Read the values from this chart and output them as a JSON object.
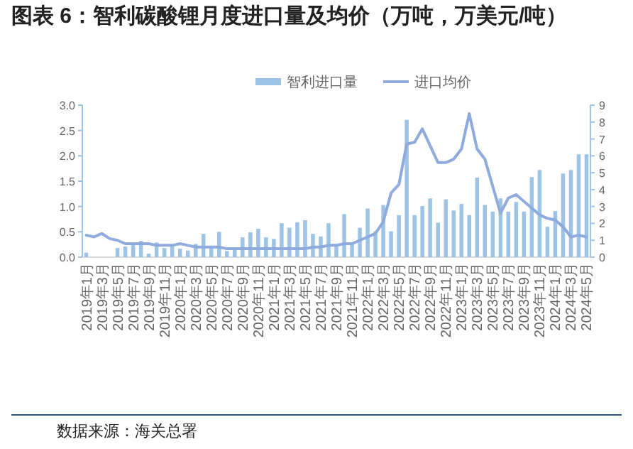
{
  "chart_data": {
    "type": "bar",
    "title": "图表 6：智利碳酸锂月度进口量及均价（万吨，万美元/吨）",
    "categories": [
      "2019年1月",
      null,
      "2019年3月",
      null,
      "2019年5月",
      null,
      "2019年7月",
      null,
      "2019年9月",
      null,
      "2019年11月",
      null,
      "2020年1月",
      null,
      "2020年3月",
      null,
      "2020年5月",
      null,
      "2020年7月",
      null,
      "2020年9月",
      null,
      "2020年11月",
      null,
      "2021年1月",
      null,
      "2021年3月",
      null,
      "2021年5月",
      null,
      "2021年7月",
      null,
      "2021年9月",
      null,
      "2021年11月",
      null,
      "2022年1月",
      null,
      "2022年3月",
      null,
      "2022年5月",
      null,
      "2022年7月",
      null,
      "2022年9月",
      null,
      "2022年11月",
      null,
      "2023年1月",
      null,
      "2023年3月",
      null,
      "2023年5月",
      null,
      "2023年7月",
      null,
      "2023年9月",
      null,
      "2023年11月",
      null,
      "2024年1月",
      null,
      "2024年3月",
      null,
      "2024年5月"
    ],
    "series": [
      {
        "name": "智利进口量",
        "color": "#9dc3e6",
        "values": [
          0.09,
          null,
          null,
          null,
          0.18,
          0.21,
          0.27,
          0.32,
          0.07,
          0.29,
          0.18,
          0.22,
          0.17,
          0.13,
          0.26,
          0.46,
          0.21,
          0.5,
          0.12,
          0.17,
          0.39,
          0.49,
          0.56,
          0.39,
          0.36,
          0.67,
          0.58,
          0.69,
          0.73,
          0.46,
          0.41,
          0.67,
          0.21,
          0.85,
          0.27,
          0.58,
          0.96,
          0.51,
          1.03,
          0.51,
          0.83,
          2.71,
          0.83,
          1.01,
          1.16,
          0.68,
          1.14,
          0.92,
          1.05,
          0.83,
          1.57,
          1.03,
          0.9,
          1.16,
          0.9,
          1.09,
          0.9,
          1.58,
          1.72,
          0.6,
          0.91,
          1.65,
          1.72,
          2.03,
          2.03
        ]
      },
      {
        "name": "进口均价",
        "type": "line",
        "axis": "y2",
        "color": "#8faadc",
        "values": [
          1.3,
          1.2,
          1.4,
          1.1,
          1.0,
          0.8,
          0.8,
          0.8,
          0.8,
          0.7,
          0.7,
          0.7,
          0.8,
          0.7,
          0.6,
          0.6,
          0.6,
          0.6,
          0.5,
          0.5,
          0.5,
          0.5,
          0.5,
          0.5,
          0.5,
          0.5,
          0.5,
          0.5,
          0.5,
          0.6,
          0.6,
          0.7,
          0.7,
          0.8,
          0.8,
          1.0,
          1.2,
          1.4,
          2.1,
          3.8,
          4.3,
          6.7,
          6.8,
          7.6,
          6.6,
          5.6,
          5.6,
          5.8,
          6.4,
          8.5,
          6.4,
          5.8,
          4.2,
          2.6,
          3.5,
          3.7,
          3.3,
          2.9,
          2.5,
          2.3,
          2.2,
          1.8,
          1.2,
          1.3,
          1.2
        ]
      }
    ],
    "ylim": [
      0,
      3
    ],
    "yticks": [
      {
        "value": 0,
        "label": "0.0"
      },
      {
        "value": 0.5,
        "label": "0.5"
      },
      {
        "value": 1,
        "label": "1.0"
      },
      {
        "value": 1.5,
        "label": "1.5"
      },
      {
        "value": 2,
        "label": "2.0"
      },
      {
        "value": 2.5,
        "label": "2.5"
      },
      {
        "value": 3,
        "label": "3.0"
      }
    ],
    "y2lim": [
      0,
      9
    ],
    "y2ticks": [
      0,
      1,
      2,
      3,
      4,
      5,
      6,
      7,
      8,
      9
    ],
    "legend": "top",
    "annotations": [
      "数据来源：海关总署"
    ]
  }
}
